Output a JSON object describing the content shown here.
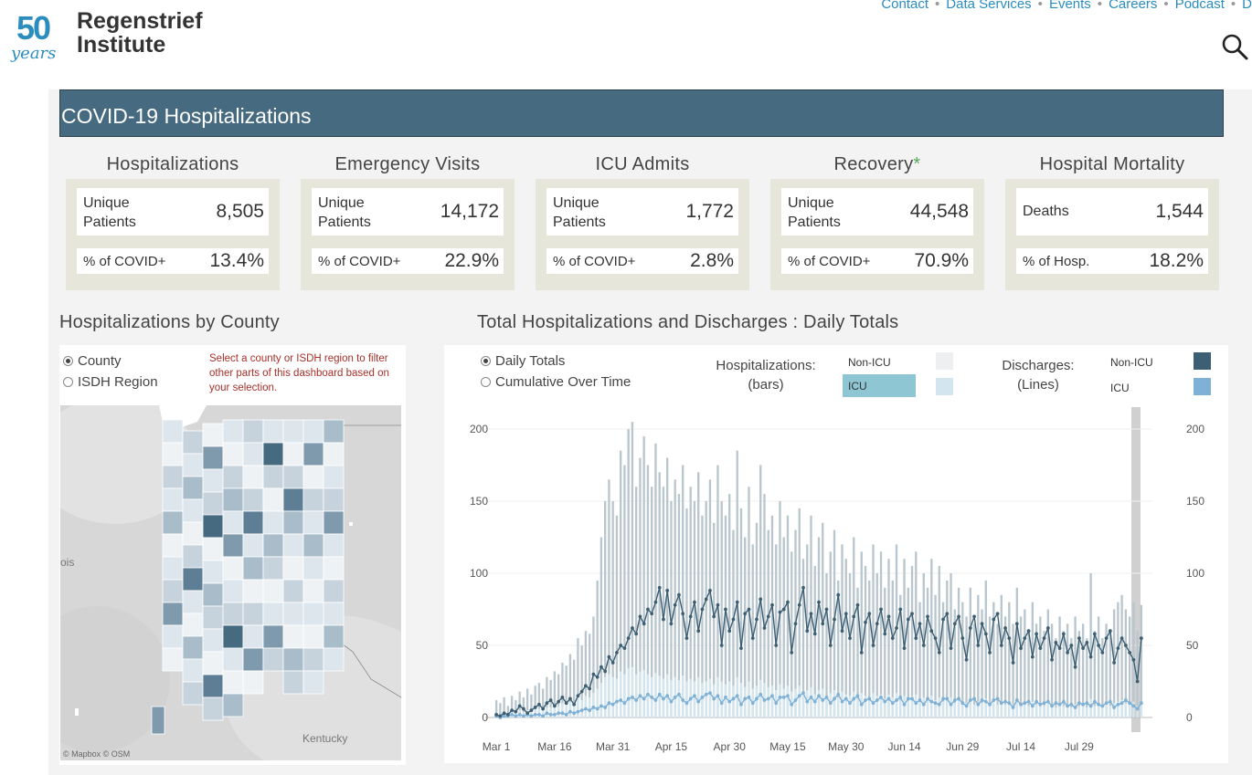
{
  "site": {
    "logo_number": "50",
    "logo_years": "years",
    "logo_name_line1": "Regenstrief",
    "logo_name_line2": "Institute",
    "nav": [
      "Contact",
      "Data Services",
      "Events",
      "Careers",
      "Podcast",
      "D"
    ]
  },
  "dashboard": {
    "title": "COVID-19 Hospitalizations",
    "kpis": [
      {
        "title": "Hospitalizations",
        "asterisk": "",
        "row1_label": "Unique\nPatients",
        "row1_value": "8,505",
        "row2_label": "% of COVID+",
        "row2_value": "13.4%"
      },
      {
        "title": "Emergency Visits",
        "asterisk": "",
        "row1_label": "Unique\nPatients",
        "row1_value": "14,172",
        "row2_label": "% of COVID+",
        "row2_value": "22.9%"
      },
      {
        "title": "ICU Admits",
        "asterisk": "",
        "row1_label": "Unique\nPatients",
        "row1_value": "1,772",
        "row2_label": "% of COVID+",
        "row2_value": "2.8%"
      },
      {
        "title": "Recovery",
        "asterisk": "*",
        "row1_label": "Unique\nPatients",
        "row1_value": "44,548",
        "row2_label": "% of COVID+",
        "row2_value": "70.9%"
      },
      {
        "title": "Hospital Mortality",
        "asterisk": "",
        "row1_label": "Deaths",
        "row1_value": "1,544",
        "row2_label": "% of Hosp.",
        "row2_value": "18.2%"
      }
    ],
    "map_section": {
      "title": "Hospitalizations by County",
      "radio_county": "County",
      "radio_region": "ISDH Region",
      "note": "Select a county or ISDH region to filter other parts of this dashboard based on your selection.",
      "label_kentucky": "Kentucky",
      "label_illinois": "ois",
      "attribution": "© Mapbox  © OSM"
    },
    "chart_section": {
      "title": "Total Hospitalizations and Discharges : Daily Totals",
      "radio_daily": "Daily Totals",
      "radio_cumulative": "Cumulative Over Time",
      "legend_hosp": "Hospitalizations:\n(bars)",
      "legend_disch": "Discharges:\n(Lines)",
      "non_icu": "Non-ICU",
      "icu": "ICU"
    },
    "colors": {
      "bar_non_icu": "#b9c6ce",
      "bar_icu": "#d3e5ef",
      "line_non_icu": "#3d5f74",
      "line_icu": "#7fb1d6",
      "title_bar": "#466a7f"
    }
  },
  "chart_data": {
    "type": "bar",
    "title": "Total Hospitalizations and Discharges : Daily Totals",
    "x_tick_labels": [
      "Mar 1",
      "Mar 16",
      "Mar 31",
      "Apr 15",
      "Apr 30",
      "May 15",
      "May 30",
      "Jun 14",
      "Jun 29",
      "Jul 14",
      "Jul 29"
    ],
    "y_ticks": [
      0,
      50,
      100,
      150,
      200
    ],
    "ylim": [
      0,
      200
    ],
    "series": [
      {
        "name": "Hospitalizations Non-ICU",
        "kind": "bar",
        "values": [
          12,
          10,
          14,
          8,
          15,
          12,
          18,
          14,
          20,
          16,
          22,
          24,
          20,
          28,
          26,
          32,
          30,
          38,
          36,
          44,
          40,
          55,
          50,
          60,
          58,
          70,
          95,
          125,
          150,
          165,
          150,
          140,
          185,
          175,
          200,
          205,
          160,
          180,
          195,
          175,
          160,
          190,
          170,
          160,
          180,
          150,
          165,
          155,
          175,
          145,
          160,
          150,
          170,
          140,
          150,
          165,
          135,
          175,
          150,
          140,
          155,
          130,
          185,
          145,
          125,
          160,
          120,
          135,
          175,
          155,
          130,
          140,
          120,
          150,
          125,
          140,
          115,
          130,
          145,
          110,
          120,
          140,
          105,
          125,
          135,
          100,
          115,
          130,
          95,
          120,
          110,
          100,
          125,
          90,
          115,
          105,
          95,
          120,
          100,
          115,
          90,
          110,
          95,
          120,
          85,
          110,
          90,
          105,
          115,
          80,
          100,
          90,
          110,
          85,
          105,
          80,
          95,
          100,
          75,
          90,
          80,
          70,
          90,
          65,
          85,
          75,
          95,
          70,
          80,
          65,
          85,
          70,
          80,
          65,
          90,
          70,
          75,
          60,
          80,
          65,
          70,
          60,
          75,
          65,
          55,
          70,
          60,
          65,
          55,
          70,
          60,
          65,
          55,
          100,
          60,
          70,
          55,
          65,
          60,
          75,
          80,
          85,
          75,
          70,
          80,
          60,
          78
        ]
      },
      {
        "name": "Hospitalizations ICU",
        "kind": "bar",
        "values": [
          3,
          2,
          4,
          2,
          4,
          3,
          5,
          4,
          5,
          4,
          6,
          6,
          5,
          7,
          7,
          8,
          8,
          10,
          9,
          11,
          10,
          14,
          12,
          15,
          14,
          17,
          20,
          24,
          28,
          30,
          28,
          27,
          32,
          30,
          34,
          35,
          30,
          32,
          33,
          30,
          28,
          31,
          29,
          27,
          30,
          26,
          28,
          26,
          29,
          25,
          27,
          25,
          28,
          24,
          25,
          27,
          23,
          28,
          25,
          23,
          25,
          22,
          28,
          24,
          21,
          25,
          20,
          22,
          26,
          24,
          21,
          22,
          19,
          23,
          20,
          22,
          18,
          20,
          22,
          17,
          19,
          21,
          16,
          19,
          20,
          15,
          17,
          19,
          14,
          18,
          16,
          15,
          18,
          13,
          17,
          15,
          14,
          17,
          15,
          16,
          13,
          16,
          14,
          17,
          12,
          15,
          13,
          15,
          16,
          11,
          14,
          13,
          15,
          12,
          14,
          11,
          13,
          14,
          10,
          12,
          11,
          10,
          12,
          9,
          11,
          10,
          13,
          9,
          11,
          9,
          11,
          9,
          11,
          9,
          12,
          9,
          10,
          8,
          11,
          9,
          10,
          8,
          10,
          9,
          7,
          9,
          8,
          9,
          7,
          9,
          8,
          9,
          7,
          13,
          8,
          9,
          7,
          9,
          8,
          10,
          11,
          12,
          10,
          9,
          11,
          8,
          10
        ]
      },
      {
        "name": "Discharges Non-ICU",
        "kind": "line",
        "values": [
          2,
          1,
          3,
          2,
          5,
          4,
          8,
          6,
          3,
          5,
          7,
          9,
          6,
          10,
          12,
          8,
          11,
          14,
          10,
          13,
          9,
          15,
          18,
          22,
          20,
          30,
          28,
          35,
          32,
          42,
          38,
          45,
          50,
          48,
          55,
          62,
          58,
          70,
          65,
          75,
          72,
          80,
          90,
          68,
          88,
          65,
          78,
          85,
          72,
          55,
          70,
          80,
          60,
          75,
          82,
          88,
          70,
          78,
          50,
          75,
          60,
          68,
          80,
          48,
          72,
          75,
          55,
          68,
          82,
          62,
          70,
          78,
          50,
          73,
          75,
          80,
          45,
          65,
          78,
          90,
          60,
          72,
          58,
          80,
          65,
          75,
          50,
          68,
          85,
          60,
          72,
          55,
          70,
          78,
          45,
          66,
          72,
          50,
          65,
          75,
          58,
          70,
          55,
          62,
          75,
          48,
          68,
          72,
          55,
          65,
          50,
          70,
          60,
          55,
          45,
          68,
          72,
          48,
          65,
          70,
          55,
          40,
          62,
          70,
          50,
          65,
          58,
          45,
          68,
          72,
          50,
          62,
          55,
          38,
          65,
          48,
          55,
          60,
          42,
          58,
          48,
          55,
          62,
          40,
          52,
          48,
          58,
          45,
          50,
          35,
          55,
          48,
          52,
          42,
          58,
          50,
          45,
          55,
          60,
          38,
          48,
          55,
          50,
          45,
          40,
          25,
          55
        ]
      },
      {
        "name": "Discharges ICU",
        "kind": "line",
        "values": [
          1,
          0,
          1,
          1,
          2,
          1,
          2,
          1,
          2,
          1,
          2,
          2,
          1,
          3,
          2,
          2,
          3,
          3,
          2,
          4,
          3,
          4,
          5,
          6,
          5,
          7,
          6,
          8,
          7,
          10,
          9,
          11,
          12,
          10,
          13,
          14,
          12,
          15,
          13,
          16,
          14,
          12,
          16,
          13,
          15,
          11,
          14,
          16,
          12,
          10,
          13,
          15,
          11,
          14,
          16,
          17,
          13,
          15,
          10,
          14,
          11,
          13,
          15,
          9,
          13,
          14,
          10,
          13,
          16,
          12,
          13,
          15,
          10,
          14,
          14,
          15,
          9,
          12,
          15,
          17,
          11,
          14,
          11,
          15,
          12,
          14,
          10,
          13,
          16,
          11,
          13,
          10,
          13,
          15,
          9,
          12,
          13,
          10,
          12,
          14,
          11,
          13,
          10,
          12,
          14,
          9,
          13,
          13,
          10,
          12,
          9,
          13,
          11,
          10,
          9,
          13,
          13,
          9,
          12,
          13,
          10,
          8,
          12,
          13,
          9,
          12,
          11,
          9,
          12,
          13,
          10,
          11,
          10,
          7,
          12,
          9,
          10,
          11,
          8,
          11,
          9,
          10,
          11,
          8,
          10,
          9,
          11,
          8,
          9,
          7,
          10,
          9,
          10,
          8,
          11,
          9,
          8,
          10,
          11,
          7,
          9,
          10,
          12,
          10,
          8,
          6,
          10
        ]
      }
    ]
  }
}
